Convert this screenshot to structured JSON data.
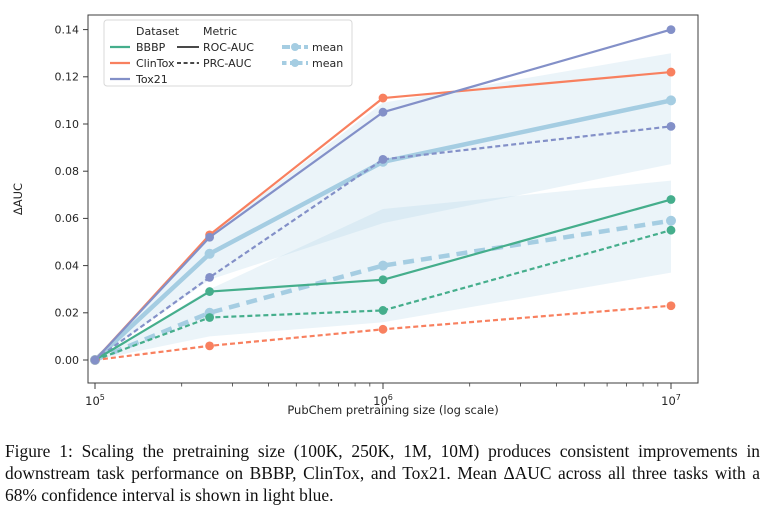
{
  "figure": {
    "caption": "Figure 1: Scaling the pretraining size (100K, 250K, 1M, 10M) produces consistent improvements in downstream task performance on BBBP, ClinTox, and Tox21. Mean ΔAUC across all three tasks with a 68% confidence interval is shown in light blue."
  },
  "chart_data": {
    "type": "line",
    "title": "",
    "xlabel": "PubChem pretraining size (log scale)",
    "ylabel": "ΔAUC",
    "x_scale": "log",
    "x_values": [
      100000,
      250000,
      1000000,
      10000000
    ],
    "x_value_labels": [
      "100K",
      "250K",
      "1M",
      "10M"
    ],
    "xlim": [
      90000,
      12500000
    ],
    "ylim": [
      -0.01,
      0.146
    ],
    "grid": false,
    "yticks": [
      "0.00",
      "0.02",
      "0.04",
      "0.06",
      "0.08",
      "0.10",
      "0.12",
      "0.14"
    ],
    "xticks": [
      {
        "value": 100000,
        "base": "10",
        "exp": "5"
      },
      {
        "value": 1000000,
        "base": "10",
        "exp": "6"
      },
      {
        "value": 10000000,
        "base": "10",
        "exp": "7"
      }
    ],
    "colors": {
      "BBBP": "#45ae8c",
      "ClinTox": "#f8805f",
      "Tox21": "#8390c8",
      "mean": "#a5cde2",
      "band": "#a5cde2",
      "metric_swatch": "#2f2f2f"
    },
    "band_opacity": 0.22,
    "series": [
      {
        "id": "mean-roc-auc",
        "name": "mean",
        "metric": "ROC-AUC",
        "style": "solid",
        "width": "thick",
        "color_key": "mean",
        "values": [
          0.0,
          0.045,
          0.084,
          0.11
        ],
        "band_low": [
          0.0,
          0.034,
          0.058,
          0.083
        ],
        "band_high": [
          0.0,
          0.053,
          0.109,
          0.13
        ]
      },
      {
        "id": "mean-prc-auc",
        "name": "mean",
        "metric": "PRC-AUC",
        "style": "dashed",
        "width": "thick",
        "color_key": "mean",
        "values": [
          0.0,
          0.02,
          0.04,
          0.059
        ],
        "band_low": [
          0.0,
          0.01,
          0.016,
          0.037
        ],
        "band_high": [
          0.0,
          0.03,
          0.064,
          0.076
        ]
      },
      {
        "id": "bbbp-prc-auc",
        "name": "BBBP",
        "metric": "PRC-AUC",
        "style": "dashed",
        "width": "thin",
        "color_key": "BBBP",
        "values": [
          0.0,
          0.018,
          0.021,
          0.055
        ]
      },
      {
        "id": "clintox-prc-auc",
        "name": "ClinTox",
        "metric": "PRC-AUC",
        "style": "dashed",
        "width": "thin",
        "color_key": "ClinTox",
        "values": [
          0.0,
          0.006,
          0.013,
          0.023
        ]
      },
      {
        "id": "tox21-prc-auc",
        "name": "Tox21",
        "metric": "PRC-AUC",
        "style": "dashed",
        "width": "thin",
        "color_key": "Tox21",
        "values": [
          0.0,
          0.035,
          0.085,
          0.099
        ]
      },
      {
        "id": "bbbp-roc-auc",
        "name": "BBBP",
        "metric": "ROC-AUC",
        "style": "solid",
        "width": "thin",
        "color_key": "BBBP",
        "values": [
          0.0,
          0.029,
          0.034,
          0.068
        ]
      },
      {
        "id": "clintox-roc-auc",
        "name": "ClinTox",
        "metric": "ROC-AUC",
        "style": "solid",
        "width": "thin",
        "color_key": "ClinTox",
        "values": [
          0.0,
          0.053,
          0.111,
          0.122
        ]
      },
      {
        "id": "tox21-roc-auc",
        "name": "Tox21",
        "metric": "ROC-AUC",
        "style": "solid",
        "width": "thin",
        "color_key": "Tox21",
        "values": [
          0.0,
          0.052,
          0.105,
          0.14
        ]
      }
    ],
    "legend": {
      "position": "upper left",
      "columns": [
        {
          "title": "Dataset",
          "items": [
            {
              "label": "BBBP",
              "swatch": "line",
              "color_key": "BBBP"
            },
            {
              "label": "ClinTox",
              "swatch": "line",
              "color_key": "ClinTox"
            },
            {
              "label": "Tox21",
              "swatch": "line",
              "color_key": "Tox21"
            }
          ]
        },
        {
          "title": "Metric",
          "items": [
            {
              "label": "ROC-AUC",
              "swatch": "solid-line",
              "color_key": "metric_swatch"
            },
            {
              "label": "PRC-AUC",
              "swatch": "dashed-line",
              "color_key": "metric_swatch"
            }
          ]
        },
        {
          "title": "",
          "items": [
            {
              "label": "mean",
              "swatch": "thick-solid-dot",
              "color_key": "mean"
            },
            {
              "label": "mean",
              "swatch": "thick-dashed-dot",
              "color_key": "mean"
            }
          ]
        }
      ]
    }
  }
}
